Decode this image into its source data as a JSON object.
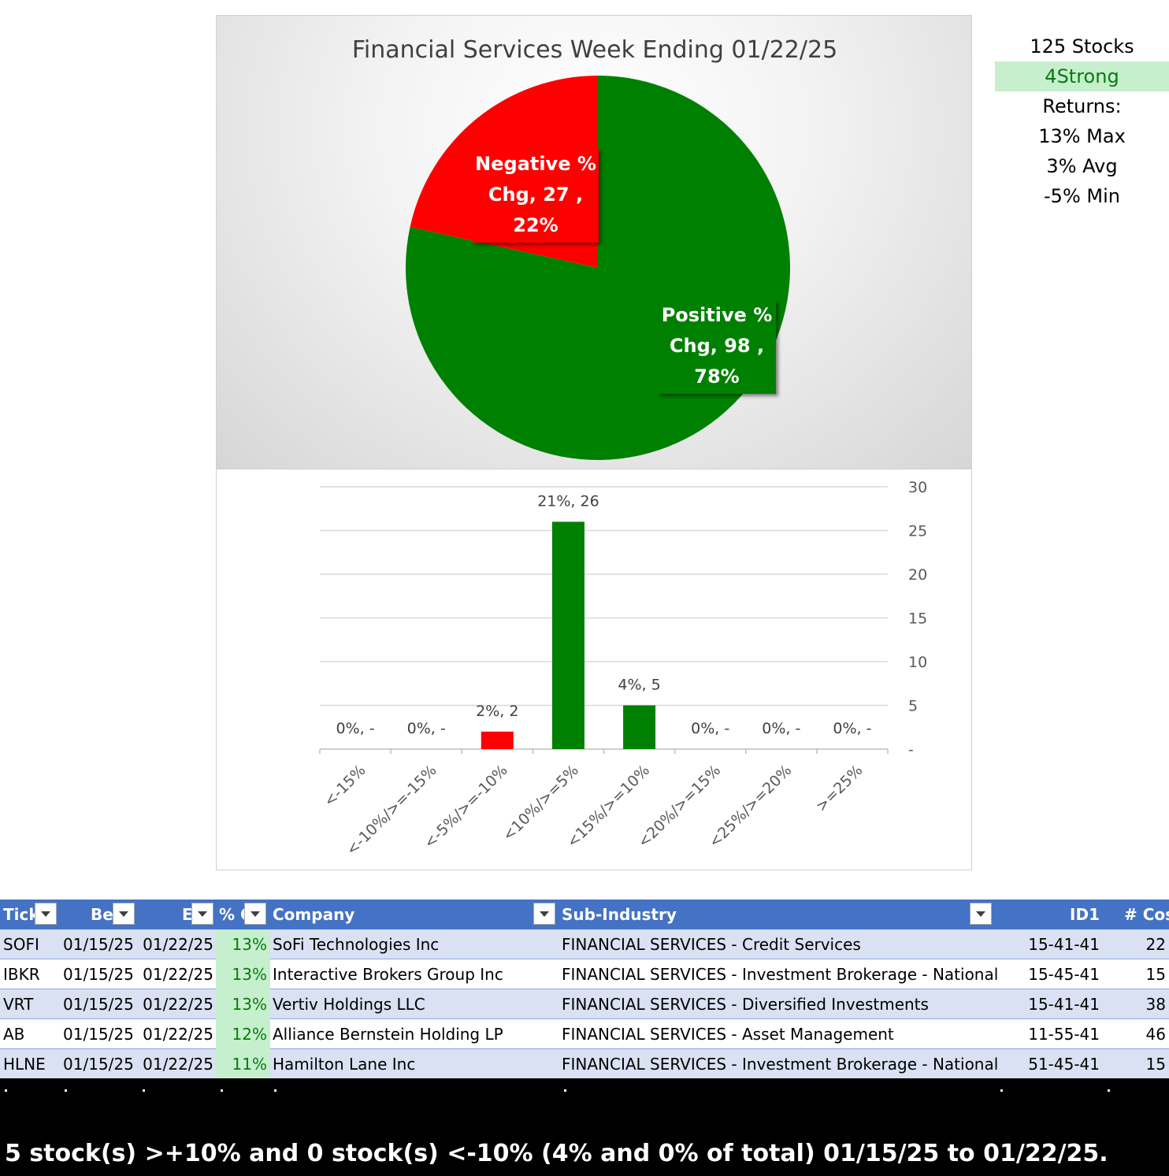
{
  "chart_data": [
    {
      "type": "pie",
      "title": "Financial Services Week Ending 01/22/25",
      "slices": [
        {
          "name": "Positive % Chg",
          "value": 98,
          "percent": "78%",
          "color": "#008000",
          "label_lines": [
            "Positive %",
            "Chg,  98 ,",
            "78%"
          ]
        },
        {
          "name": "Negative % Chg",
          "value": 27,
          "percent": "22%",
          "color": "#ff0000",
          "label_lines": [
            "Negative %",
            "Chg,  27 ,",
            "22%"
          ]
        }
      ]
    },
    {
      "type": "bar",
      "categories": [
        "<-15%",
        "<-10%/>=-15%",
        "<-5%/>=-10%",
        "<10%/>=5%",
        "<15%/>=10%",
        "<20%/>=15%",
        "<25%/>=20%",
        ">=25%"
      ],
      "values": [
        0,
        0,
        2,
        26,
        5,
        0,
        0,
        0
      ],
      "colors": [
        "#ff0000",
        "#ff0000",
        "#ff0000",
        "#008000",
        "#008000",
        "#008000",
        "#008000",
        "#008000"
      ],
      "data_labels": [
        "0%,  -",
        "0%,  -",
        "2%,  2",
        "21%,  26",
        "4%,  5",
        "0%,  -",
        "0%,  -",
        "0%,  -"
      ],
      "ylim": [
        0,
        30
      ],
      "yticks": [
        0,
        5,
        10,
        15,
        20,
        25,
        30
      ],
      "ytick_labels": [
        "-",
        "5",
        "10",
        "15",
        "20",
        "25",
        "30"
      ],
      "yaxis_side": "right",
      "grid": true
    }
  ],
  "stats": {
    "stocks": "125 Stocks",
    "strength": "4Strong",
    "returns_label": "Returns:",
    "max": "13% Max",
    "avg": "3% Avg",
    "min": "-5% Min"
  },
  "table": {
    "headers": [
      "Tick",
      "Be",
      "E",
      "% C",
      "Company",
      "Sub-Industry",
      "ID1",
      "# Cos"
    ],
    "rows": [
      [
        "SOFI",
        "01/15/25",
        "01/22/25",
        "13%",
        "SoFi Technologies Inc",
        "FINANCIAL SERVICES - Credit Services",
        "15-41-41",
        "22"
      ],
      [
        "IBKR",
        "01/15/25",
        "01/22/25",
        "13%",
        "Interactive Brokers Group Inc",
        "FINANCIAL SERVICES - Investment Brokerage - National",
        "15-45-41",
        "15"
      ],
      [
        "VRT",
        "01/15/25",
        "01/22/25",
        "13%",
        "Vertiv Holdings LLC",
        "FINANCIAL SERVICES - Diversified Investments",
        "15-41-41",
        "38"
      ],
      [
        "AB",
        "01/15/25",
        "01/22/25",
        "12%",
        "Alliance Bernstein Holding LP",
        "FINANCIAL SERVICES - Asset Management",
        "11-55-41",
        "46"
      ],
      [
        "HLNE",
        "01/15/25",
        "01/22/25",
        "11%",
        "Hamilton Lane Inc",
        "FINANCIAL SERVICES - Investment Brokerage - National",
        "51-45-41",
        "15"
      ]
    ]
  },
  "footer": {
    "summary": "5 stock(s) >+10% and 0 stock(s) <-10% (4% and 0% of total) 01/15/25 to 01/22/25."
  }
}
